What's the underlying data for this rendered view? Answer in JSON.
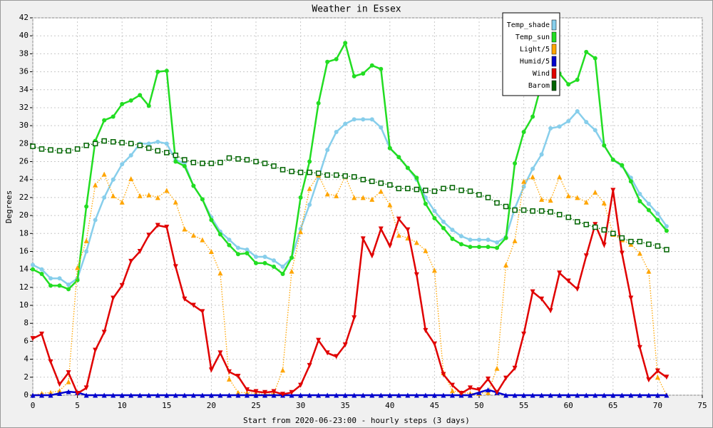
{
  "chart_data": {
    "type": "line",
    "title": "Weather in Essex",
    "x_label": "Start from 2020-06-23:00 - hourly steps (3 days)",
    "y_label": "Degrees",
    "x": [
      0,
      1,
      2,
      3,
      4,
      5,
      6,
      7,
      8,
      9,
      10,
      11,
      12,
      13,
      14,
      15,
      16,
      17,
      18,
      19,
      20,
      21,
      22,
      23,
      24,
      25,
      26,
      27,
      28,
      29,
      30,
      31,
      32,
      33,
      34,
      35,
      36,
      37,
      38,
      39,
      40,
      41,
      42,
      43,
      44,
      45,
      46,
      47,
      48,
      49,
      50,
      51,
      52,
      53,
      54,
      55,
      56,
      57,
      58,
      59,
      60,
      61,
      62,
      63,
      64,
      65,
      66,
      67,
      68,
      69,
      70,
      71
    ],
    "xlim": [
      0,
      75
    ],
    "xticks": [
      0,
      5,
      10,
      15,
      20,
      25,
      30,
      35,
      40,
      45,
      50,
      55,
      60,
      65,
      70,
      75
    ],
    "ylim": [
      0,
      42
    ],
    "yticks": [
      0,
      2,
      4,
      6,
      8,
      10,
      12,
      14,
      16,
      18,
      20,
      22,
      24,
      26,
      28,
      30,
      32,
      34,
      36,
      38,
      40,
      42
    ],
    "grid": true,
    "legend": "top-right",
    "series": [
      {
        "name": "Temp_shade",
        "color": "#87ceeb",
        "marker": "circle",
        "line": "solid",
        "values": [
          14.5,
          14,
          13,
          13,
          12.3,
          13,
          16,
          19.5,
          22,
          24,
          25.7,
          26.7,
          28,
          28,
          28.2,
          28,
          26.2,
          25.8,
          23.3,
          21.8,
          19.8,
          18.2,
          17.3,
          16.4,
          16.2,
          15.4,
          15.4,
          15,
          14.3,
          15.3,
          18.5,
          21.2,
          24.2,
          27.3,
          29.3,
          30.2,
          30.7,
          30.7,
          30.7,
          29.8,
          27.5,
          26.5,
          25.3,
          24,
          22,
          20.5,
          19.3,
          18.4,
          17.7,
          17.3,
          17.3,
          17.3,
          17,
          17.6,
          20.8,
          23.2,
          25.2,
          26.8,
          29.7,
          29.9,
          30.5,
          31.6,
          30.4,
          29.5,
          27.8,
          26.2,
          25.5,
          24.2,
          22.4,
          21.3,
          20.2,
          18.8
        ]
      },
      {
        "name": "Temp_sun",
        "color": "#22dd22",
        "marker": "circle",
        "line": "solid",
        "values": [
          14,
          13.5,
          12.2,
          12.2,
          11.8,
          12.8,
          21,
          28.3,
          30.6,
          31,
          32.4,
          32.8,
          33.4,
          32.2,
          36,
          36.1,
          26,
          25.5,
          23.3,
          21.8,
          19.5,
          17.9,
          16.7,
          15.7,
          15.8,
          14.7,
          14.7,
          14.3,
          13.5,
          15.3,
          22,
          26,
          32.5,
          37.1,
          37.4,
          39.2,
          35.5,
          35.8,
          36.7,
          36.3,
          27.5,
          26.5,
          25.3,
          24.2,
          21.3,
          19.7,
          18.6,
          17.4,
          16.8,
          16.5,
          16.5,
          16.5,
          16.4,
          17.5,
          25.8,
          29.3,
          31,
          34.7,
          36.5,
          35.8,
          34.6,
          35.1,
          38.2,
          37.5,
          27.8,
          26.2,
          25.6,
          23.8,
          21.6,
          20.6,
          19.5,
          18.3
        ]
      },
      {
        "name": "Light/5",
        "color": "#ffa500",
        "marker": "triangle-up",
        "line": "dotted",
        "values": [
          0,
          0.2,
          0.3,
          0.5,
          1.5,
          14.2,
          17.2,
          23.4,
          24.6,
          22.2,
          21.5,
          24.1,
          22.2,
          22.3,
          22,
          22.8,
          21.5,
          18.5,
          17.8,
          17.3,
          16,
          13.6,
          1.8,
          0.3,
          0.3,
          0.2,
          0.1,
          0.2,
          2.8,
          13.8,
          18.2,
          23,
          24.5,
          22.4,
          22.2,
          24.4,
          22,
          22,
          21.8,
          22.7,
          21.2,
          17.8,
          17.5,
          17,
          16.1,
          13.9,
          2.5,
          0.5,
          0.3,
          0.2,
          0.2,
          0.3,
          3,
          14.5,
          17.2,
          23.8,
          24.3,
          21.8,
          21.7,
          24.3,
          22.2,
          22,
          21.5,
          22.6,
          21.4,
          17.9,
          17.3,
          16.8,
          15.8,
          13.8,
          2,
          0
        ]
      },
      {
        "name": "Humid/5",
        "color": "#0000cd",
        "marker": "triangle-up",
        "line": "solid",
        "values": [
          0,
          0,
          0,
          0.2,
          0.4,
          0.3,
          0,
          0,
          0,
          0,
          0,
          0,
          0,
          0,
          0,
          0,
          0,
          0,
          0,
          0,
          0,
          0,
          0,
          0,
          0,
          0,
          0,
          0,
          0,
          0,
          0,
          0,
          0,
          0,
          0,
          0,
          0,
          0,
          0,
          0,
          0,
          0,
          0,
          0,
          0,
          0,
          0,
          0,
          0,
          0,
          0.3,
          0.6,
          0.3,
          0,
          0,
          0,
          0,
          0,
          0,
          0,
          0,
          0,
          0,
          0,
          0,
          0,
          0,
          0,
          0,
          0,
          0,
          0
        ]
      },
      {
        "name": "Wind",
        "color": "#e00000",
        "marker": "triangle-down",
        "line": "solid",
        "values": [
          6.3,
          6.8,
          3.7,
          1.2,
          2.5,
          0.2,
          0.8,
          5,
          7,
          10.8,
          12.2,
          14.9,
          16,
          17.8,
          18.9,
          18.7,
          14.3,
          10.7,
          10,
          9.3,
          2.8,
          4.7,
          2.6,
          2.1,
          0.6,
          0.4,
          0.3,
          0.4,
          0.1,
          0.3,
          1.1,
          3.3,
          6.1,
          4.7,
          4.3,
          5.6,
          8.6,
          17.4,
          15.5,
          18.5,
          16.6,
          19.6,
          18.4,
          13.4,
          7.2,
          5.7,
          2.3,
          1.1,
          0.2,
          0.8,
          0.6,
          1.8,
          0.3,
          1.9,
          3,
          6.8,
          11.5,
          10.7,
          9.4,
          13.6,
          12.7,
          11.8,
          15.5,
          19,
          16.7,
          22.8,
          15.8,
          10.8,
          5.3,
          1.7,
          2.7,
          2
        ]
      },
      {
        "name": "Barom",
        "color": "#006400",
        "marker": "square",
        "line": "dotted",
        "values": [
          27.7,
          27.4,
          27.3,
          27.2,
          27.2,
          27.4,
          27.8,
          28,
          28.3,
          28.2,
          28.1,
          28,
          27.8,
          27.5,
          27.2,
          27,
          26.7,
          26.2,
          25.9,
          25.8,
          25.8,
          25.9,
          26.4,
          26.3,
          26.2,
          26,
          25.8,
          25.5,
          25.1,
          24.9,
          24.8,
          24.8,
          24.7,
          24.5,
          24.5,
          24.4,
          24.3,
          24,
          23.8,
          23.6,
          23.4,
          23,
          23,
          22.9,
          22.8,
          22.7,
          23,
          23.1,
          22.8,
          22.7,
          22.3,
          22,
          21.4,
          21,
          20.6,
          20.6,
          20.5,
          20.5,
          20.4,
          20.1,
          19.8,
          19.3,
          19,
          18.7,
          18.4,
          18,
          17.5,
          17.1,
          17.1,
          16.8,
          16.6,
          16.2
        ]
      }
    ]
  }
}
